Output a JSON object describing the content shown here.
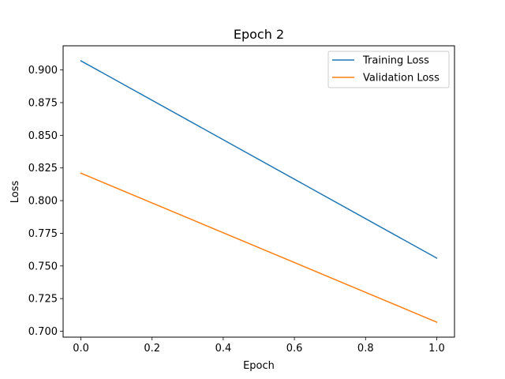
{
  "chart_data": {
    "type": "line",
    "title": "Epoch 2",
    "xlabel": "Epoch",
    "ylabel": "Loss",
    "xlim": [
      -0.05,
      1.05
    ],
    "ylim": [
      0.6955,
      0.9185
    ],
    "xticks": [
      0.0,
      0.2,
      0.4,
      0.6,
      0.8,
      1.0
    ],
    "xtick_labels": [
      "0.0",
      "0.2",
      "0.4",
      "0.6",
      "0.8",
      "1.0"
    ],
    "yticks": [
      0.7,
      0.725,
      0.75,
      0.775,
      0.8,
      0.825,
      0.85,
      0.875,
      0.9
    ],
    "ytick_labels": [
      "0.700",
      "0.725",
      "0.750",
      "0.775",
      "0.800",
      "0.825",
      "0.850",
      "0.875",
      "0.900"
    ],
    "grid": false,
    "legend_position": "top-right",
    "x": [
      0,
      1
    ],
    "series": [
      {
        "name": "Training Loss",
        "color": "#1f77b4",
        "values": [
          0.907,
          0.756
        ]
      },
      {
        "name": "Validation Loss",
        "color": "#ff7f0e",
        "values": [
          0.821,
          0.707
        ]
      }
    ]
  }
}
